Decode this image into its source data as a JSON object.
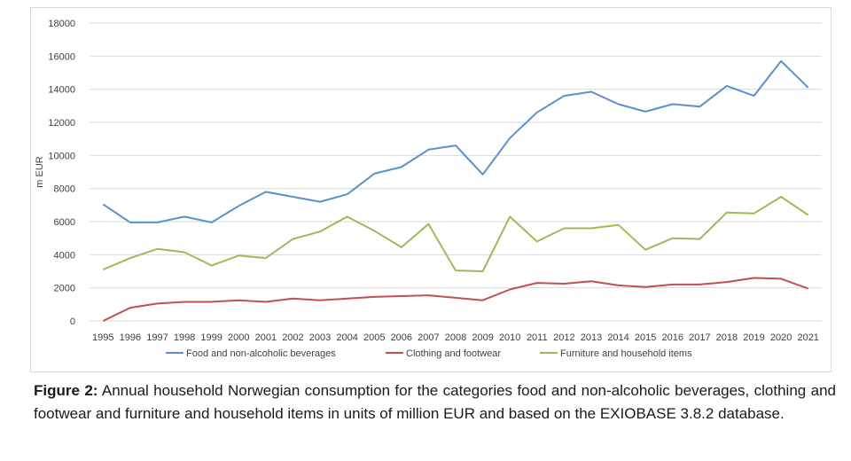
{
  "chart_data": {
    "type": "line",
    "title": "",
    "xlabel": "",
    "ylabel": "m EUR",
    "ylim": [
      0,
      18000
    ],
    "yticks": [
      0,
      2000,
      4000,
      6000,
      8000,
      10000,
      12000,
      14000,
      16000,
      18000
    ],
    "grid": true,
    "legend_position": "bottom",
    "categories": [
      "1995",
      "1996",
      "1997",
      "1998",
      "1999",
      "2000",
      "2001",
      "2002",
      "2003",
      "2004",
      "2005",
      "2006",
      "2007",
      "2008",
      "2009",
      "2010",
      "2011",
      "2012",
      "2013",
      "2014",
      "2015",
      "2016",
      "2017",
      "2018",
      "2019",
      "2020",
      "2021"
    ],
    "series": [
      {
        "name": "Food and non-alcoholic beverages",
        "color": "#5b8fd1",
        "values": [
          7050,
          5950,
          5950,
          6300,
          5950,
          6950,
          7800,
          7500,
          7200,
          7650,
          8900,
          9300,
          10350,
          10600,
          8850,
          11050,
          12600,
          13600,
          13850,
          13100,
          12650,
          13100,
          12950,
          14200,
          13600,
          15700,
          14100
        ]
      },
      {
        "name": "Clothing and footwear",
        "color": "#c0504d",
        "values": [
          0,
          800,
          1050,
          1150,
          1150,
          1250,
          1150,
          1350,
          1250,
          1350,
          1450,
          1500,
          1550,
          1400,
          1250,
          1900,
          2300,
          2250,
          2400,
          2150,
          2050,
          2200,
          2200,
          2350,
          2600,
          2550,
          1950
        ]
      },
      {
        "name": "Furniture and household items",
        "color": "#9bbb59",
        "values": [
          3100,
          3800,
          4350,
          4150,
          3350,
          3950,
          3800,
          4950,
          5400,
          6300,
          5450,
          4450,
          5850,
          3050,
          3000,
          6300,
          4800,
          5600,
          5600,
          5800,
          4300,
          5000,
          4950,
          6550,
          6500,
          7500,
          6400
        ]
      }
    ]
  },
  "caption": {
    "label": "Figure 2:",
    "text": " Annual household Norwegian consumption for the categories food and non-alcoholic beverages, clothing and footwear and furniture and household items in units of million EUR and based on the EXIOBASE 3.8.2 database."
  },
  "colors": {
    "grid": "#d9d9d9",
    "text": "#404040"
  }
}
